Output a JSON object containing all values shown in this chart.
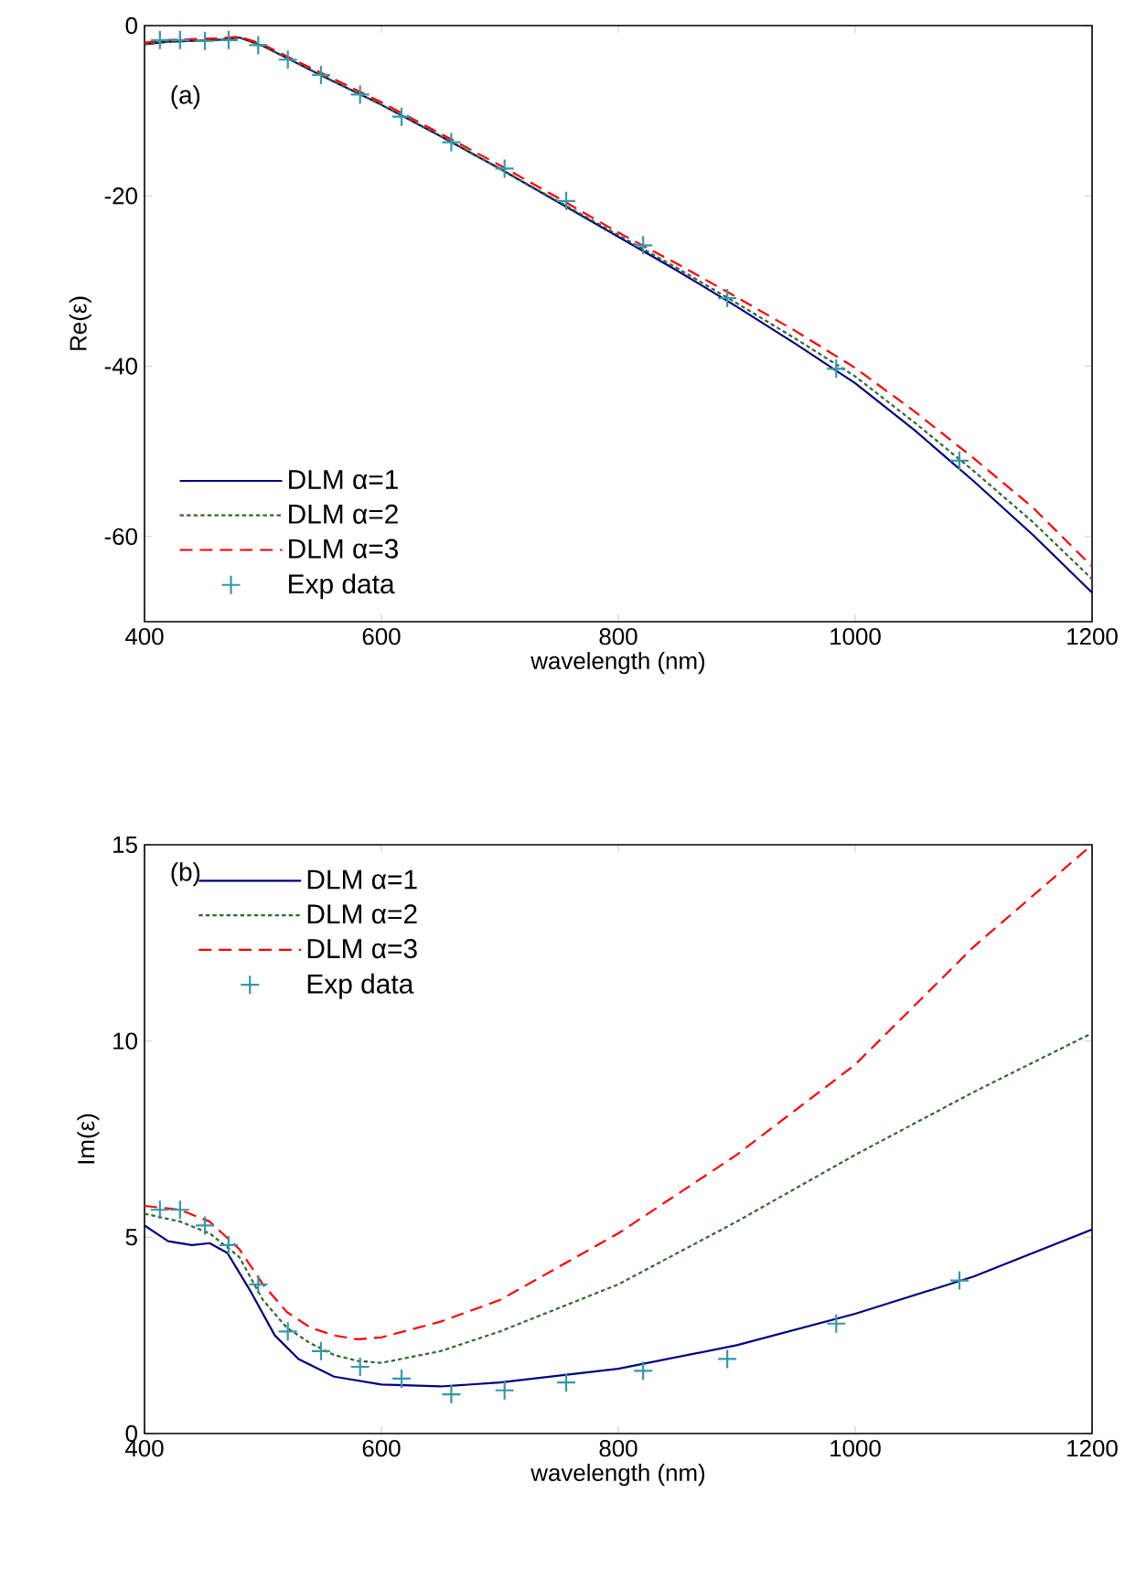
{
  "chart_data": [
    {
      "type": "line",
      "xlabel": "wavelength (nm)",
      "ylabel": "Re(ε)",
      "annotations": [
        "(a)"
      ],
      "xlim": [
        400,
        1200
      ],
      "xticks": [
        400,
        600,
        800,
        1000,
        1200
      ],
      "ylim": [
        -70,
        0
      ],
      "yticks": [
        -60,
        -40,
        -20,
        0
      ],
      "legend": "bottom left",
      "series": [
        {
          "name": "DLM α=1",
          "color": "#000080",
          "line_style": "solid",
          "x": [
            400,
            420,
            440,
            460,
            480,
            500,
            520,
            550,
            600,
            650,
            700,
            750,
            800,
            850,
            900,
            950,
            1000,
            1050,
            1100,
            1150,
            1200
          ],
          "values": [
            -2.2,
            -1.9,
            -1.8,
            -1.7,
            -1.4,
            -2.4,
            -3.8,
            -5.9,
            -9.3,
            -13.0,
            -16.8,
            -20.8,
            -24.8,
            -28.8,
            -33.0,
            -37.4,
            -42.0,
            -47.5,
            -53.5,
            -59.8,
            -66.6
          ]
        },
        {
          "name": "DLM α=2",
          "color": "#336633",
          "line_style": "dotted",
          "x": [
            400,
            420,
            440,
            460,
            480,
            500,
            520,
            550,
            600,
            650,
            700,
            750,
            800,
            850,
            900,
            950,
            1000,
            1050,
            1100,
            1150,
            1200
          ],
          "values": [
            -2.2,
            -1.9,
            -1.8,
            -1.7,
            -1.4,
            -2.4,
            -3.8,
            -5.9,
            -9.3,
            -13.0,
            -16.8,
            -20.7,
            -24.6,
            -28.5,
            -32.6,
            -36.8,
            -41.2,
            -46.6,
            -52.3,
            -58.3,
            -65.0
          ]
        },
        {
          "name": "DLM α=3",
          "color": "#ff0000",
          "line_style": "dashed",
          "x": [
            400,
            420,
            440,
            460,
            480,
            500,
            520,
            550,
            600,
            650,
            700,
            750,
            800,
            850,
            900,
            950,
            1000,
            1050,
            1100,
            1150,
            1200
          ],
          "values": [
            -2.0,
            -1.7,
            -1.6,
            -1.5,
            -1.3,
            -2.2,
            -3.6,
            -5.6,
            -9.0,
            -12.7,
            -16.4,
            -20.3,
            -24.3,
            -28.0,
            -31.9,
            -35.9,
            -40.2,
            -45.3,
            -50.8,
            -56.6,
            -63.5
          ]
        },
        {
          "name": "Exp data",
          "type": "scatter",
          "marker": "cross",
          "color": "#3399aa",
          "x": [
            413,
            430,
            451,
            471,
            496,
            521,
            549,
            582,
            617,
            659,
            704,
            756,
            821,
            892,
            984,
            1088
          ],
          "values": [
            -1.7,
            -1.7,
            -1.8,
            -1.7,
            -2.3,
            -4.0,
            -5.8,
            -8.1,
            -10.7,
            -13.7,
            -16.8,
            -20.6,
            -25.8,
            -32.0,
            -40.3,
            -51.1
          ]
        }
      ]
    },
    {
      "type": "line",
      "xlabel": "wavelength (nm)",
      "ylabel": "Im(ε)",
      "annotations": [
        "(b)"
      ],
      "xlim": [
        400,
        1200
      ],
      "xticks": [
        400,
        600,
        800,
        1000,
        1200
      ],
      "ylim": [
        0,
        15
      ],
      "yticks": [
        0,
        5,
        10,
        15
      ],
      "legend": "top left",
      "series": [
        {
          "name": "DLM α=1",
          "color": "#000080",
          "line_style": "solid",
          "x": [
            400,
            420,
            440,
            455,
            470,
            490,
            510,
            530,
            560,
            600,
            650,
            700,
            800,
            900,
            1000,
            1100,
            1200
          ],
          "values": [
            5.3,
            4.9,
            4.8,
            4.85,
            4.6,
            3.6,
            2.5,
            1.9,
            1.45,
            1.25,
            1.2,
            1.3,
            1.65,
            2.25,
            3.05,
            4.0,
            5.2
          ]
        },
        {
          "name": "DLM α=2",
          "color": "#336633",
          "line_style": "dotted",
          "x": [
            400,
            430,
            455,
            480,
            500,
            520,
            540,
            560,
            580,
            600,
            650,
            700,
            800,
            900,
            1000,
            1100,
            1200
          ],
          "values": [
            5.6,
            5.4,
            5.1,
            4.5,
            3.4,
            2.7,
            2.3,
            2.0,
            1.85,
            1.8,
            2.1,
            2.6,
            3.8,
            5.4,
            7.1,
            8.7,
            10.2
          ]
        },
        {
          "name": "DLM α=3",
          "color": "#ff0000",
          "line_style": "dashed",
          "x": [
            400,
            430,
            455,
            480,
            500,
            520,
            540,
            560,
            580,
            600,
            650,
            700,
            800,
            900,
            1000,
            1100,
            1200
          ],
          "values": [
            5.8,
            5.7,
            5.4,
            4.7,
            3.8,
            3.1,
            2.7,
            2.5,
            2.4,
            2.45,
            2.85,
            3.4,
            5.1,
            7.1,
            9.4,
            12.4,
            15.0
          ]
        },
        {
          "name": "Exp data",
          "type": "scatter",
          "marker": "cross",
          "color": "#3399aa",
          "x": [
            413,
            430,
            451,
            471,
            496,
            521,
            549,
            582,
            617,
            659,
            704,
            756,
            821,
            892,
            984,
            1088
          ],
          "values": [
            5.7,
            5.7,
            5.3,
            4.8,
            3.8,
            2.6,
            2.1,
            1.7,
            1.4,
            1.0,
            1.1,
            1.3,
            1.6,
            1.9,
            2.8,
            3.9
          ]
        }
      ]
    }
  ]
}
